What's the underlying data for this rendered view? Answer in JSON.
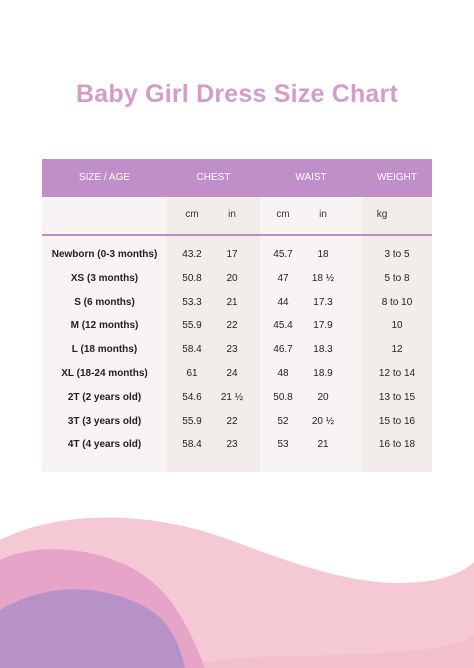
{
  "title": "Baby Girl Dress Size Chart",
  "headers": {
    "size_age": "SIZE / AGE",
    "chest": "CHEST",
    "waist": "WAIST",
    "weight": "WEIGHT"
  },
  "units": {
    "chest_cm": "cm",
    "chest_in": "in",
    "waist_cm": "cm",
    "waist_in": "in",
    "weight_kg": "kg"
  },
  "rows": [
    {
      "size": "Newborn (0-3 months)",
      "chest_cm": "43.2",
      "chest_in": "17",
      "waist_cm": "45.7",
      "waist_in": "18",
      "weight": "3 to 5"
    },
    {
      "size": "XS (3 months)",
      "chest_cm": "50.8",
      "chest_in": "20",
      "waist_cm": "47",
      "waist_in": "18 ½",
      "weight": "5 to 8"
    },
    {
      "size": "S (6 months)",
      "chest_cm": "53.3",
      "chest_in": "21",
      "waist_cm": "44",
      "waist_in": "17.3",
      "weight": "8 to 10"
    },
    {
      "size": "M (12 months)",
      "chest_cm": "55.9",
      "chest_in": "22",
      "waist_cm": "45.4",
      "waist_in": "17.9",
      "weight": "10"
    },
    {
      "size": "L (18 months)",
      "chest_cm": "58.4",
      "chest_in": "23",
      "waist_cm": "46.7",
      "waist_in": "18.3",
      "weight": "12"
    },
    {
      "size": "XL (18-24 months)",
      "chest_cm": "61",
      "chest_in": "24",
      "waist_cm": "48",
      "waist_in": "18.9",
      "weight": "12 to 14"
    },
    {
      "size": "2T (2 years old)",
      "chest_cm": "54.6",
      "chest_in": "21 ½",
      "waist_cm": "50.8",
      "waist_in": "20",
      "weight": "13 to 15"
    },
    {
      "size": "3T (3 years old)",
      "chest_cm": "55.9",
      "chest_in": "22",
      "waist_cm": "52",
      "waist_in": "20 ½",
      "weight": "15 to 16"
    },
    {
      "size": "4T (4 years old)",
      "chest_cm": "58.4",
      "chest_in": "23",
      "waist_cm": "53",
      "waist_in": "21",
      "weight": "16 to 18"
    }
  ],
  "colors": {
    "title": "#d69cc6",
    "header_bar": "#c08fca",
    "divider": "#b98cc6",
    "wave_light_pink": "#f4c9d3",
    "wave_peach": "#f9d9d4",
    "wave_pink": "#e7a4c9",
    "wave_purple": "#b792c6"
  }
}
